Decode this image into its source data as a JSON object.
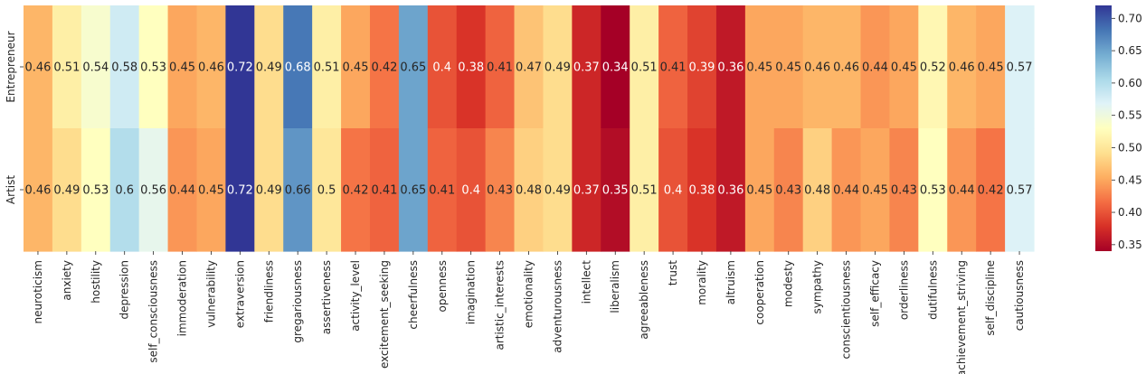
{
  "chart_data": {
    "type": "heatmap",
    "title": "",
    "xlabel": "",
    "ylabel": "",
    "rows": [
      "Entrepreneur",
      "Artist"
    ],
    "columns": [
      "neuroticism",
      "anxiety",
      "hostility",
      "depression",
      "self_consciousness",
      "immoderation",
      "vulnerability",
      "extraversion",
      "friendliness",
      "gregariousness",
      "assertiveness",
      "activity_level",
      "excitement_seeking",
      "cheerfulness",
      "openness",
      "imagination",
      "artistic_interests",
      "emotionality",
      "adventurousness",
      "intellect",
      "liberalism",
      "agreeableness",
      "trust",
      "morality",
      "altruism",
      "cooperation",
      "modesty",
      "sympathy",
      "conscientiousness",
      "self_efficacy",
      "orderliness",
      "dutifulness",
      "achievement_striving",
      "self_discipline",
      "cautiousness"
    ],
    "values": [
      [
        0.46,
        0.51,
        0.54,
        0.58,
        0.53,
        0.45,
        0.46,
        0.72,
        0.49,
        0.68,
        0.51,
        0.45,
        0.42,
        0.65,
        0.4,
        0.38,
        0.41,
        0.47,
        0.49,
        0.37,
        0.34,
        0.51,
        0.41,
        0.39,
        0.36,
        0.45,
        0.45,
        0.46,
        0.46,
        0.44,
        0.45,
        0.52,
        0.46,
        0.45,
        0.57
      ],
      [
        0.46,
        0.49,
        0.53,
        0.6,
        0.56,
        0.44,
        0.45,
        0.72,
        0.49,
        0.66,
        0.5,
        0.42,
        0.41,
        0.65,
        0.41,
        0.4,
        0.43,
        0.48,
        0.49,
        0.37,
        0.35,
        0.51,
        0.4,
        0.38,
        0.36,
        0.45,
        0.43,
        0.48,
        0.44,
        0.45,
        0.43,
        0.53,
        0.44,
        0.42,
        0.57
      ]
    ],
    "colormap": "RdYlBu",
    "vmin": 0.34,
    "vmax": 0.72,
    "colorbar": {
      "ticks": [
        "0.35",
        "0.40",
        "0.45",
        "0.50",
        "0.55",
        "0.60",
        "0.65",
        "0.70"
      ],
      "position": "right"
    },
    "annotations": true,
    "grid": false
  }
}
